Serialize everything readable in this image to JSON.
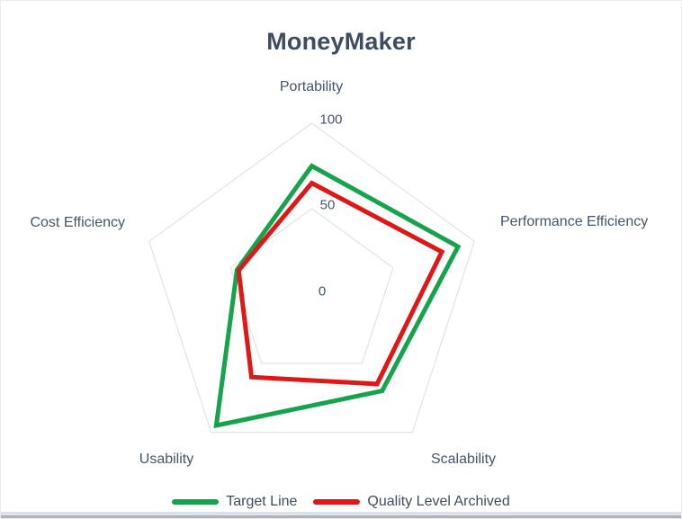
{
  "title": "MoneyMaker",
  "chart_data": {
    "type": "radar",
    "title": "MoneyMaker",
    "categories": [
      "Portability",
      "Performance Efficiency",
      "Scalability",
      "Usability",
      "Cost Efficiency"
    ],
    "series": [
      {
        "name": "Target Line",
        "color": "#15a34b",
        "values": [
          75,
          90,
          70,
          95,
          46
        ]
      },
      {
        "name": "Quality Level Archived",
        "color": "#e01717",
        "values": [
          65,
          80,
          65,
          60,
          45
        ]
      }
    ],
    "axis": {
      "min": 0,
      "max": 100,
      "ticks": [
        0,
        50,
        100
      ]
    },
    "grid_rings": [
      50,
      100
    ],
    "grid_on": true,
    "legend_position": "bottom"
  },
  "colors": {
    "title_text": "#3e4c61",
    "label_text": "#45546b",
    "grid_line": "#e3e3e3",
    "target_line": "#15a34b",
    "quality_line": "#e01717",
    "frame_bottom_blue": "#d9e3f0",
    "frame_bottom_gray": "#b2b2b2"
  }
}
